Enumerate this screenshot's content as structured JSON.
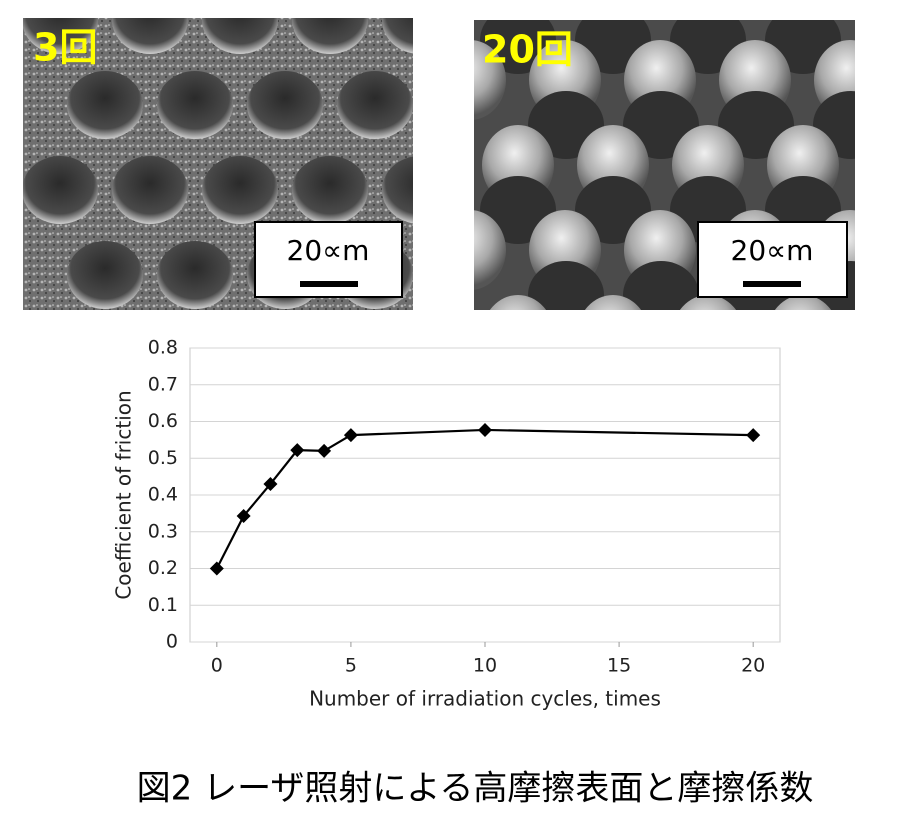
{
  "images": [
    {
      "label": "3回",
      "scale": "20∝m"
    },
    {
      "label": "20回",
      "scale": "20∝m"
    }
  ],
  "chart_data": {
    "type": "line",
    "x": [
      0,
      1,
      2,
      3,
      4,
      5,
      10,
      20
    ],
    "series": [
      {
        "name": "Coefficient of friction",
        "color": "#000000",
        "values": [
          0.2,
          0.343,
          0.43,
          0.522,
          0.52,
          0.563,
          0.577,
          0.563
        ]
      }
    ],
    "xlim": [
      -1,
      21
    ],
    "xticks": [
      0,
      5,
      10,
      15,
      20
    ],
    "ylim": [
      0,
      0.8
    ],
    "yticks": [
      0,
      0.1,
      0.2,
      0.3,
      0.4,
      0.5,
      0.6,
      0.7,
      0.8
    ],
    "xlabel": "Number of irradiation cycles, times",
    "ylabel": "Coefficient of  friction",
    "grid": true
  },
  "caption": "図2 レーザ照射による高摩擦表面と摩擦係数"
}
